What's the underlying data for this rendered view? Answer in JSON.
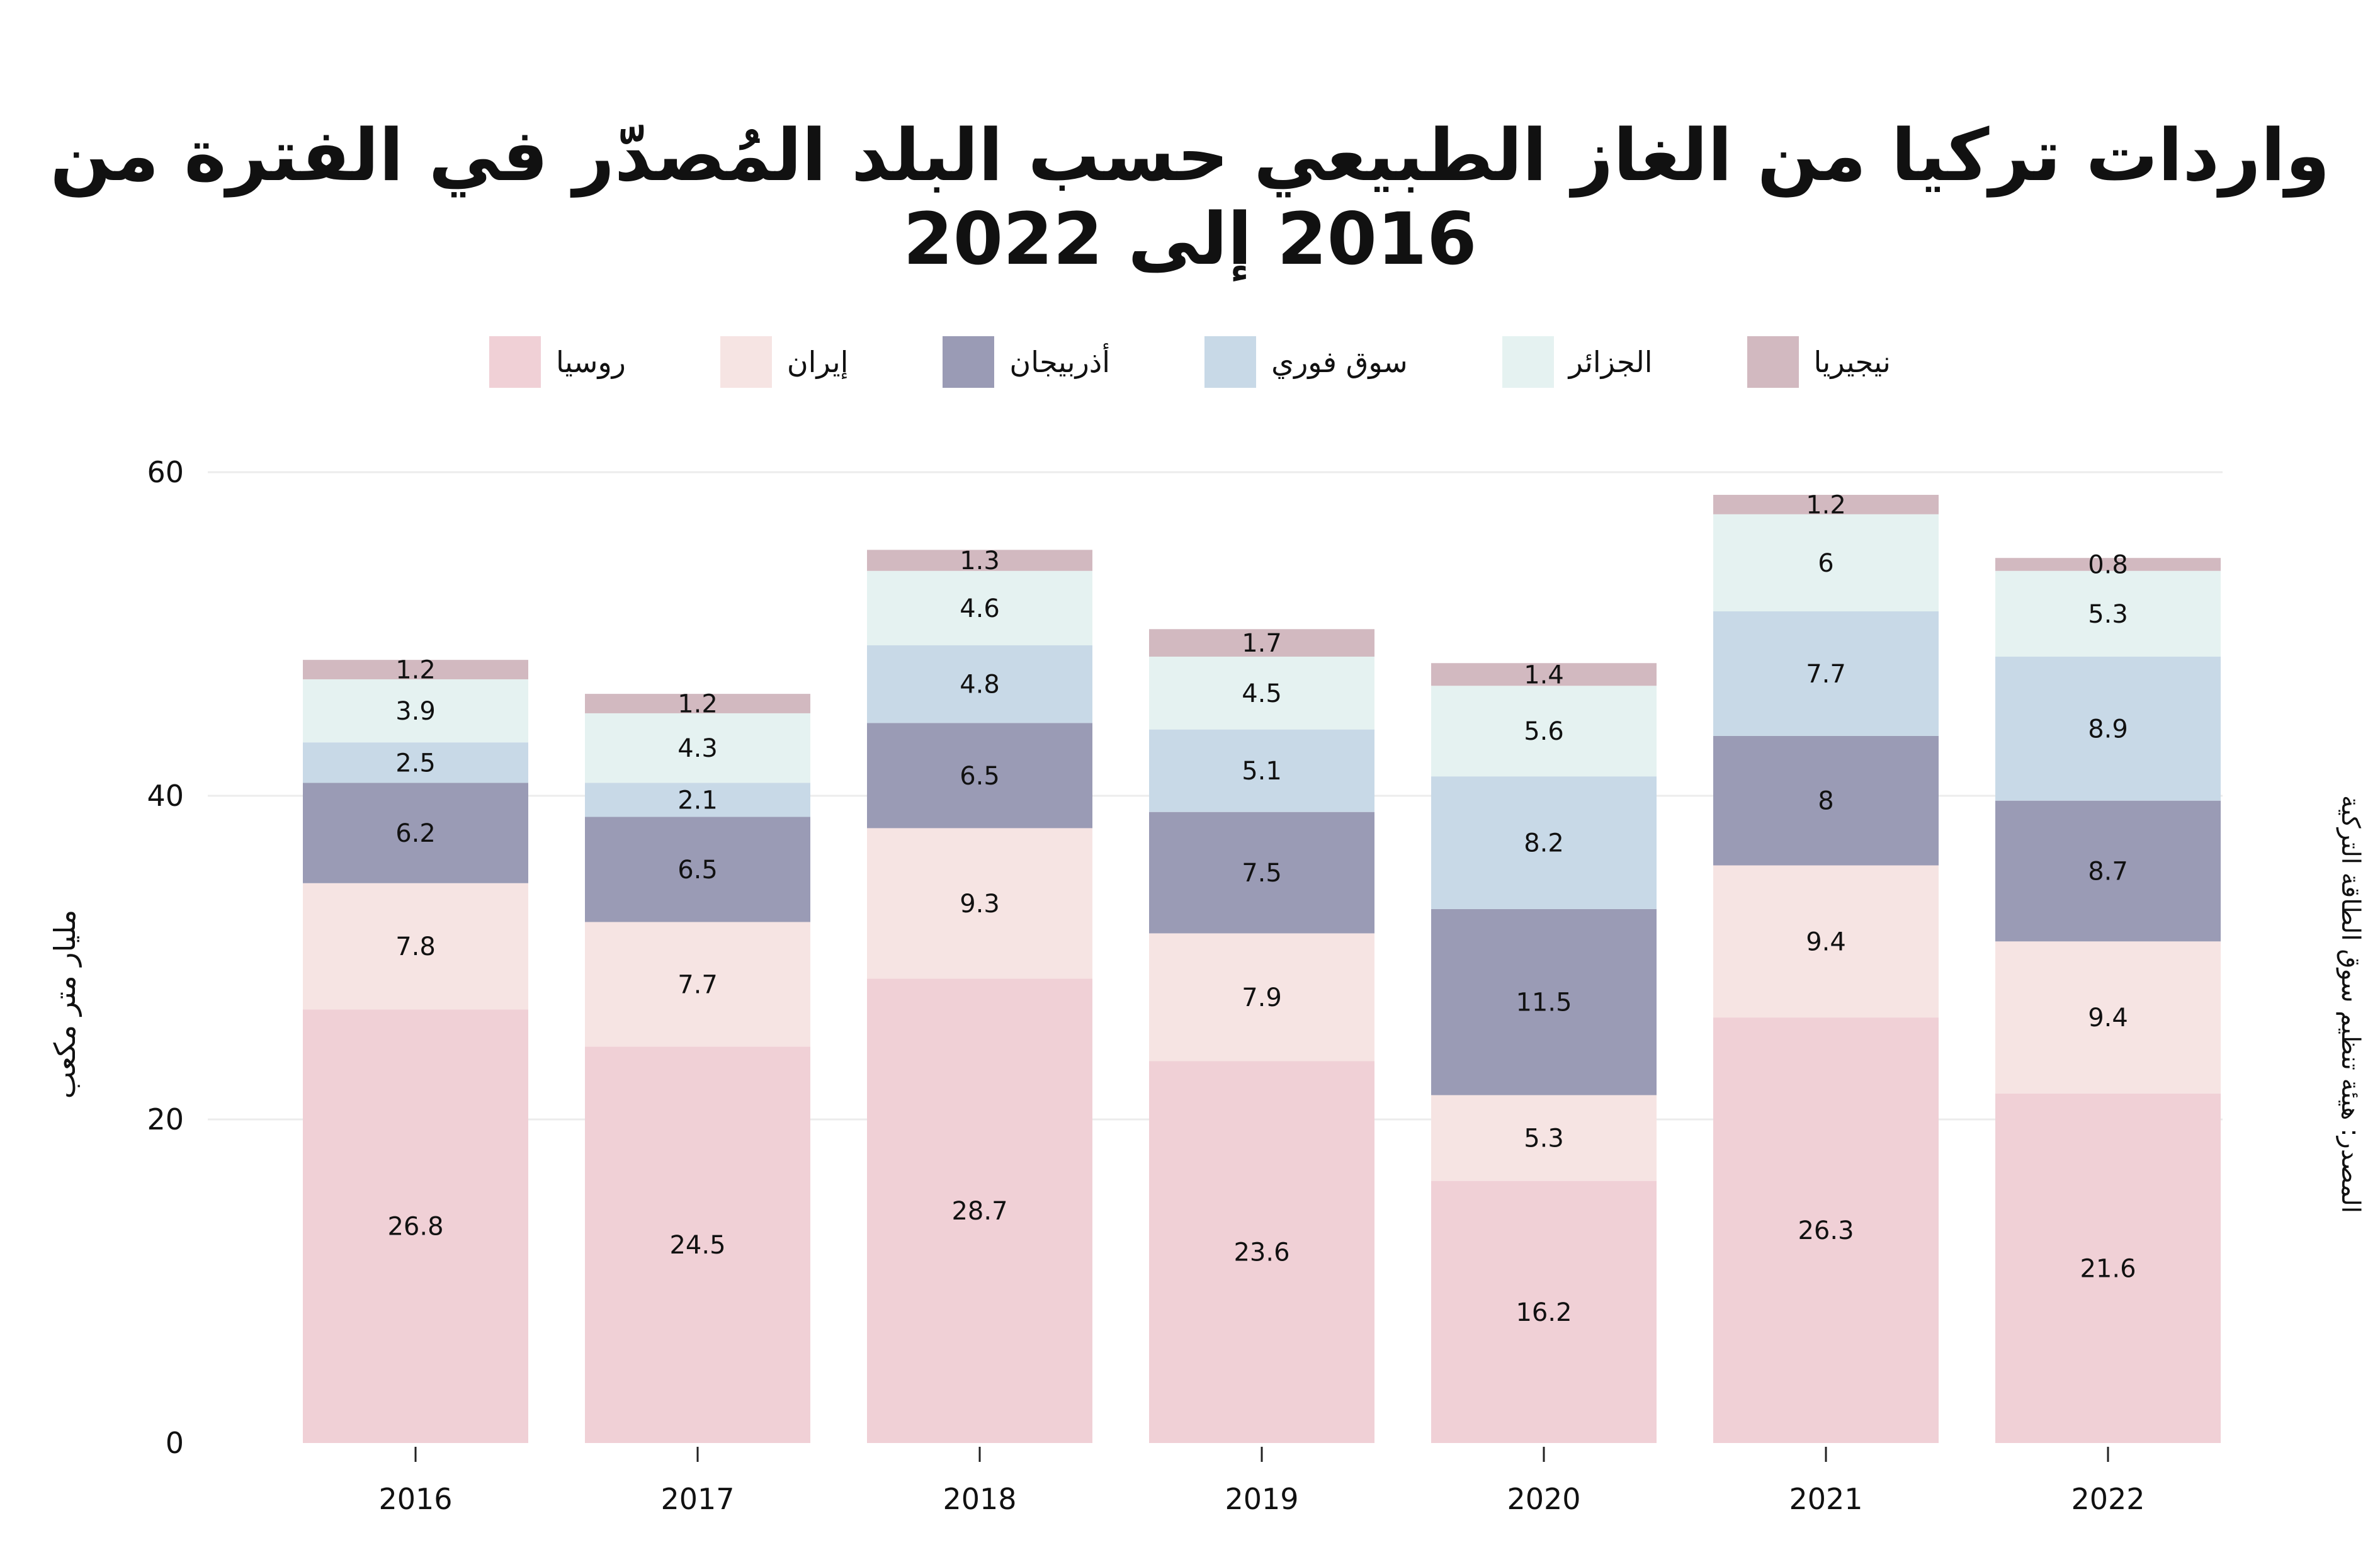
{
  "chart_data": {
    "type": "bar",
    "stacked": true,
    "title": "واردات تركيا من الغاز الطبيعي حسب البلد المُصدّر في الفترة من 2016 إلى 2022",
    "ylabel": "مليار متر مكعب",
    "xlabel": "",
    "source": "المصدر: هيئة تنظيم سوق الطاقة التركية",
    "ylim": [
      0,
      60
    ],
    "yticks": [
      "0",
      "20",
      "40",
      "60"
    ],
    "grid": true,
    "legend_position": "top",
    "categories": [
      "2016",
      "2017",
      "2018",
      "2019",
      "2020",
      "2021",
      "2022"
    ],
    "series": [
      {
        "name": "روسيا",
        "color": "#f0d0d6",
        "values": [
          26.8,
          24.5,
          28.7,
          23.6,
          16.2,
          26.3,
          21.6
        ]
      },
      {
        "name": "إيران",
        "color": "#f6e4e3",
        "values": [
          7.8,
          7.7,
          9.3,
          7.9,
          5.3,
          9.4,
          9.4
        ]
      },
      {
        "name": "أذربيجان",
        "color": "#9a9bb5",
        "values": [
          6.2,
          6.5,
          6.5,
          7.5,
          11.5,
          8,
          8.7
        ]
      },
      {
        "name": "سوق فوري",
        "color": "#c8d9e7",
        "values": [
          2.5,
          2.1,
          4.8,
          5.1,
          8.2,
          7.7,
          8.9
        ]
      },
      {
        "name": "الجزائر",
        "color": "#e5f2f1",
        "values": [
          3.9,
          4.3,
          4.6,
          4.5,
          5.6,
          6,
          5.3
        ]
      },
      {
        "name": "نيجيريا",
        "color": "#d2b9c0",
        "values": [
          1.2,
          1.2,
          1.3,
          1.7,
          1.4,
          1.2,
          0.8
        ]
      }
    ]
  }
}
